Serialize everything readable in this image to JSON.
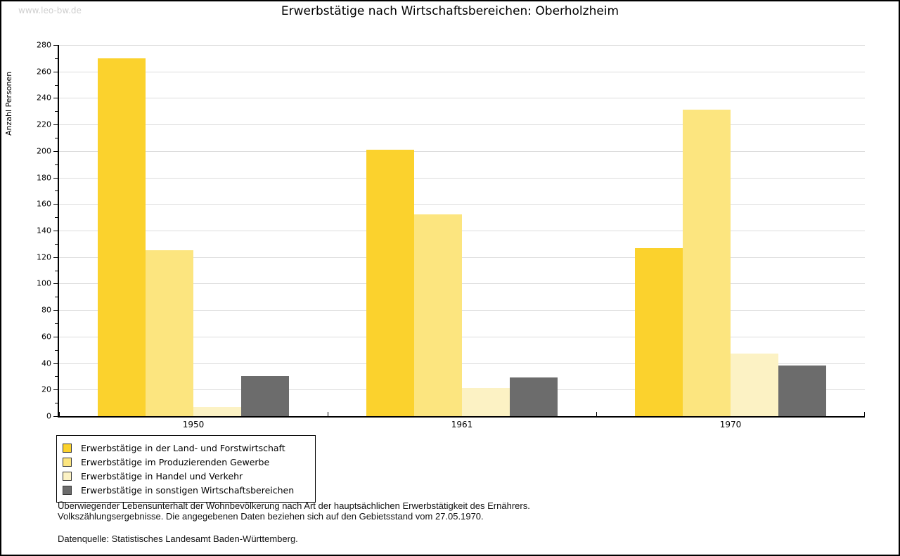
{
  "page": {
    "watermark": "www.leo-bw.de",
    "title": "Erwerbstätige nach Wirtschaftsbereichen: Oberholzheim"
  },
  "chart_data": {
    "type": "bar",
    "title": "Erwerbstätige nach Wirtschaftsbereichen: Oberholzheim",
    "xlabel": "",
    "ylabel": "Anzahl Personen",
    "categories": [
      "1950",
      "1961",
      "1970"
    ],
    "series": [
      {
        "name": "Erwerbstätige in der Land- und Forstwirtschaft",
        "color": "#FBD22D",
        "values": [
          270,
          201,
          127
        ]
      },
      {
        "name": "Erwerbstätige im Produzierenden Gewerbe",
        "color": "#FCE57F",
        "values": [
          125,
          152,
          231
        ]
      },
      {
        "name": "Erwerbstätige in Handel und Verkehr",
        "color": "#FCF2C4",
        "values": [
          7,
          21,
          47
        ]
      },
      {
        "name": "Erwerbstätige in sonstigen Wirtschaftsbereichen",
        "color": "#6C6C6C",
        "values": [
          30,
          29,
          38
        ]
      }
    ],
    "ylim": [
      0,
      280
    ],
    "ytick_step": 20,
    "yminor_step": 10,
    "grid": true,
    "legend_position": "bottom-left"
  },
  "footer": {
    "line1": "Überwiegender Lebensunterhalt der Wohnbevölkerung nach Art der hauptsächlichen Erwerbstätigkeit des Ernährers.",
    "line2": "Volkszählungsergebnisse. Die angegebenen Daten beziehen sich auf den Gebietsstand vom 27.05.1970.",
    "source": "Datenquelle: Statistisches Landesamt Baden-Württemberg."
  },
  "colors": {
    "grid": "#dcdcdc",
    "axis": "#000000",
    "watermark": "#cfcfcf",
    "background": "#ffffff"
  }
}
